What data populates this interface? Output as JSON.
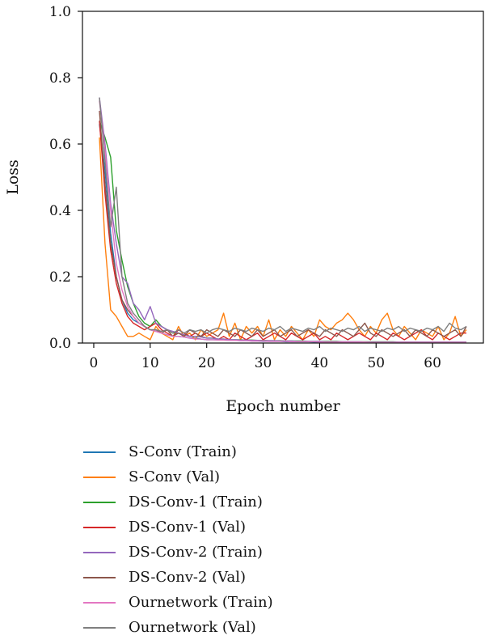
{
  "chart_data": {
    "type": "line",
    "title": "",
    "xlabel": "Epoch number",
    "ylabel": "Loss",
    "xlim": [
      -2,
      69
    ],
    "ylim": [
      0,
      1.0
    ],
    "xticks": [
      0,
      10,
      20,
      30,
      40,
      50,
      60
    ],
    "yticks": [
      0.0,
      0.2,
      0.4,
      0.6,
      0.8,
      1.0
    ],
    "xtick_labels": [
      "0",
      "10",
      "20",
      "30",
      "40",
      "50",
      "60"
    ],
    "ytick_labels": [
      "0.0",
      "0.2",
      "0.4",
      "0.6",
      "0.8",
      "1.0"
    ],
    "grid": false,
    "legend_position": "below",
    "x": [
      1,
      2,
      3,
      4,
      5,
      6,
      7,
      8,
      9,
      10,
      11,
      12,
      13,
      14,
      15,
      16,
      17,
      18,
      19,
      20,
      21,
      22,
      23,
      24,
      25,
      26,
      27,
      28,
      29,
      30,
      31,
      32,
      33,
      34,
      35,
      36,
      37,
      38,
      39,
      40,
      41,
      42,
      43,
      44,
      45,
      46,
      47,
      48,
      49,
      50,
      51,
      52,
      53,
      54,
      55,
      56,
      57,
      58,
      59,
      60,
      61,
      62,
      63,
      64,
      65,
      66
    ],
    "series": [
      {
        "name": "S-Conv (Train)",
        "color": "#1f77b4",
        "values": [
          0.66,
          0.52,
          0.33,
          0.2,
          0.13,
          0.09,
          0.07,
          0.06,
          0.05,
          0.04,
          0.035,
          0.03,
          0.025,
          0.02,
          0.02,
          0.018,
          0.015,
          0.015,
          0.012,
          0.01,
          0.01,
          0.01,
          0.009,
          0.008,
          0.008,
          0.007,
          0.007,
          0.006,
          0.006,
          0.005,
          0.005,
          0.005,
          0.005,
          0.004,
          0.004,
          0.004,
          0.004,
          0.004,
          0.003,
          0.003,
          0.003,
          0.003,
          0.003,
          0.003,
          0.003,
          0.003,
          0.002,
          0.002,
          0.002,
          0.002,
          0.002,
          0.002,
          0.002,
          0.002,
          0.002,
          0.002,
          0.002,
          0.002,
          0.002,
          0.002,
          0.002,
          0.002,
          0.002,
          0.002,
          0.002,
          0.002
        ]
      },
      {
        "name": "S-Conv (Val)",
        "color": "#ff7f0e",
        "values": [
          0.62,
          0.3,
          0.1,
          0.08,
          0.05,
          0.02,
          0.02,
          0.03,
          0.02,
          0.01,
          0.05,
          0.03,
          0.02,
          0.01,
          0.05,
          0.02,
          0.03,
          0.01,
          0.04,
          0.02,
          0.03,
          0.04,
          0.09,
          0.02,
          0.06,
          0.01,
          0.05,
          0.03,
          0.05,
          0.02,
          0.07,
          0.01,
          0.04,
          0.02,
          0.05,
          0.03,
          0.01,
          0.04,
          0.02,
          0.07,
          0.05,
          0.04,
          0.06,
          0.07,
          0.09,
          0.07,
          0.04,
          0.02,
          0.05,
          0.03,
          0.07,
          0.09,
          0.04,
          0.02,
          0.05,
          0.03,
          0.01,
          0.04,
          0.03,
          0.02,
          0.05,
          0.01,
          0.03,
          0.08,
          0.02,
          0.04
        ]
      },
      {
        "name": "DS-Conv-1 (Train)",
        "color": "#2ca02c",
        "values": [
          0.67,
          0.62,
          0.56,
          0.34,
          0.25,
          0.17,
          0.12,
          0.08,
          0.06,
          0.05,
          0.07,
          0.05,
          0.04,
          0.03,
          0.03,
          0.025,
          0.02,
          0.02,
          0.02,
          0.015,
          0.015,
          0.012,
          0.012,
          0.01,
          0.01,
          0.01,
          0.009,
          0.009,
          0.008,
          0.008,
          0.007,
          0.007,
          0.007,
          0.006,
          0.006,
          0.006,
          0.006,
          0.005,
          0.005,
          0.005,
          0.005,
          0.005,
          0.005,
          0.004,
          0.004,
          0.004,
          0.004,
          0.004,
          0.004,
          0.004,
          0.004,
          0.004,
          0.004,
          0.003,
          0.003,
          0.003,
          0.003,
          0.003,
          0.003,
          0.003,
          0.003,
          0.003,
          0.003,
          0.003,
          0.003,
          0.003
        ]
      },
      {
        "name": "DS-Conv-1 (Val)",
        "color": "#d62728",
        "values": [
          0.67,
          0.45,
          0.28,
          0.18,
          0.12,
          0.08,
          0.06,
          0.05,
          0.04,
          0.05,
          0.06,
          0.04,
          0.03,
          0.02,
          0.04,
          0.03,
          0.02,
          0.03,
          0.02,
          0.03,
          0.02,
          0.01,
          0.02,
          0.01,
          0.03,
          0.02,
          0.01,
          0.02,
          0.03,
          0.01,
          0.02,
          0.03,
          0.02,
          0.01,
          0.03,
          0.02,
          0.01,
          0.02,
          0.03,
          0.01,
          0.02,
          0.01,
          0.03,
          0.02,
          0.01,
          0.02,
          0.03,
          0.02,
          0.01,
          0.03,
          0.02,
          0.01,
          0.03,
          0.02,
          0.01,
          0.02,
          0.03,
          0.04,
          0.02,
          0.01,
          0.03,
          0.02,
          0.01,
          0.02,
          0.03,
          0.03
        ]
      },
      {
        "name": "DS-Conv-2 (Train)",
        "color": "#9467bd",
        "values": [
          0.74,
          0.6,
          0.42,
          0.3,
          0.2,
          0.18,
          0.12,
          0.1,
          0.07,
          0.11,
          0.06,
          0.05,
          0.04,
          0.035,
          0.03,
          0.025,
          0.02,
          0.02,
          0.018,
          0.015,
          0.015,
          0.012,
          0.012,
          0.01,
          0.01,
          0.009,
          0.009,
          0.008,
          0.008,
          0.007,
          0.007,
          0.007,
          0.006,
          0.006,
          0.006,
          0.005,
          0.005,
          0.005,
          0.005,
          0.005,
          0.004,
          0.004,
          0.004,
          0.004,
          0.004,
          0.004,
          0.004,
          0.003,
          0.003,
          0.003,
          0.003,
          0.003,
          0.003,
          0.003,
          0.003,
          0.003,
          0.003,
          0.003,
          0.003,
          0.003,
          0.003,
          0.003,
          0.003,
          0.003,
          0.003,
          0.003
        ]
      },
      {
        "name": "DS-Conv-2 (Val)",
        "color": "#8c564b",
        "values": [
          0.7,
          0.48,
          0.3,
          0.2,
          0.13,
          0.1,
          0.08,
          0.06,
          0.05,
          0.04,
          0.04,
          0.03,
          0.04,
          0.02,
          0.03,
          0.02,
          0.04,
          0.03,
          0.02,
          0.04,
          0.03,
          0.02,
          0.04,
          0.03,
          0.02,
          0.04,
          0.03,
          0.02,
          0.04,
          0.02,
          0.03,
          0.04,
          0.02,
          0.03,
          0.04,
          0.02,
          0.03,
          0.04,
          0.03,
          0.02,
          0.04,
          0.03,
          0.02,
          0.04,
          0.03,
          0.02,
          0.04,
          0.06,
          0.03,
          0.02,
          0.04,
          0.03,
          0.02,
          0.03,
          0.04,
          0.02,
          0.04,
          0.03,
          0.02,
          0.04,
          0.03,
          0.02,
          0.03,
          0.04,
          0.02,
          0.05
        ]
      },
      {
        "name": "Ournetwork (Train)",
        "color": "#e377c2",
        "values": [
          0.73,
          0.58,
          0.4,
          0.24,
          0.16,
          0.11,
          0.08,
          0.06,
          0.05,
          0.04,
          0.035,
          0.03,
          0.025,
          0.02,
          0.02,
          0.018,
          0.015,
          0.012,
          0.012,
          0.01,
          0.01,
          0.009,
          0.009,
          0.008,
          0.008,
          0.007,
          0.007,
          0.006,
          0.006,
          0.006,
          0.005,
          0.005,
          0.005,
          0.005,
          0.004,
          0.004,
          0.004,
          0.004,
          0.004,
          0.003,
          0.003,
          0.003,
          0.003,
          0.003,
          0.003,
          0.003,
          0.003,
          0.003,
          0.002,
          0.002,
          0.002,
          0.002,
          0.002,
          0.002,
          0.002,
          0.002,
          0.002,
          0.002,
          0.002,
          0.002,
          0.002,
          0.002,
          0.002,
          0.002,
          0.002,
          0.002
        ]
      },
      {
        "name": "Ournetwork (Val)",
        "color": "#7f7f7f",
        "values": [
          0.74,
          0.55,
          0.35,
          0.47,
          0.2,
          0.12,
          0.09,
          0.07,
          0.05,
          0.04,
          0.04,
          0.035,
          0.04,
          0.03,
          0.04,
          0.03,
          0.04,
          0.035,
          0.04,
          0.03,
          0.04,
          0.045,
          0.04,
          0.035,
          0.045,
          0.04,
          0.035,
          0.045,
          0.04,
          0.035,
          0.045,
          0.04,
          0.05,
          0.035,
          0.045,
          0.04,
          0.035,
          0.045,
          0.04,
          0.05,
          0.035,
          0.045,
          0.04,
          0.035,
          0.045,
          0.04,
          0.05,
          0.035,
          0.045,
          0.04,
          0.035,
          0.045,
          0.04,
          0.05,
          0.035,
          0.045,
          0.04,
          0.035,
          0.045,
          0.04,
          0.05,
          0.035,
          0.06,
          0.045,
          0.04,
          0.05
        ]
      }
    ]
  }
}
